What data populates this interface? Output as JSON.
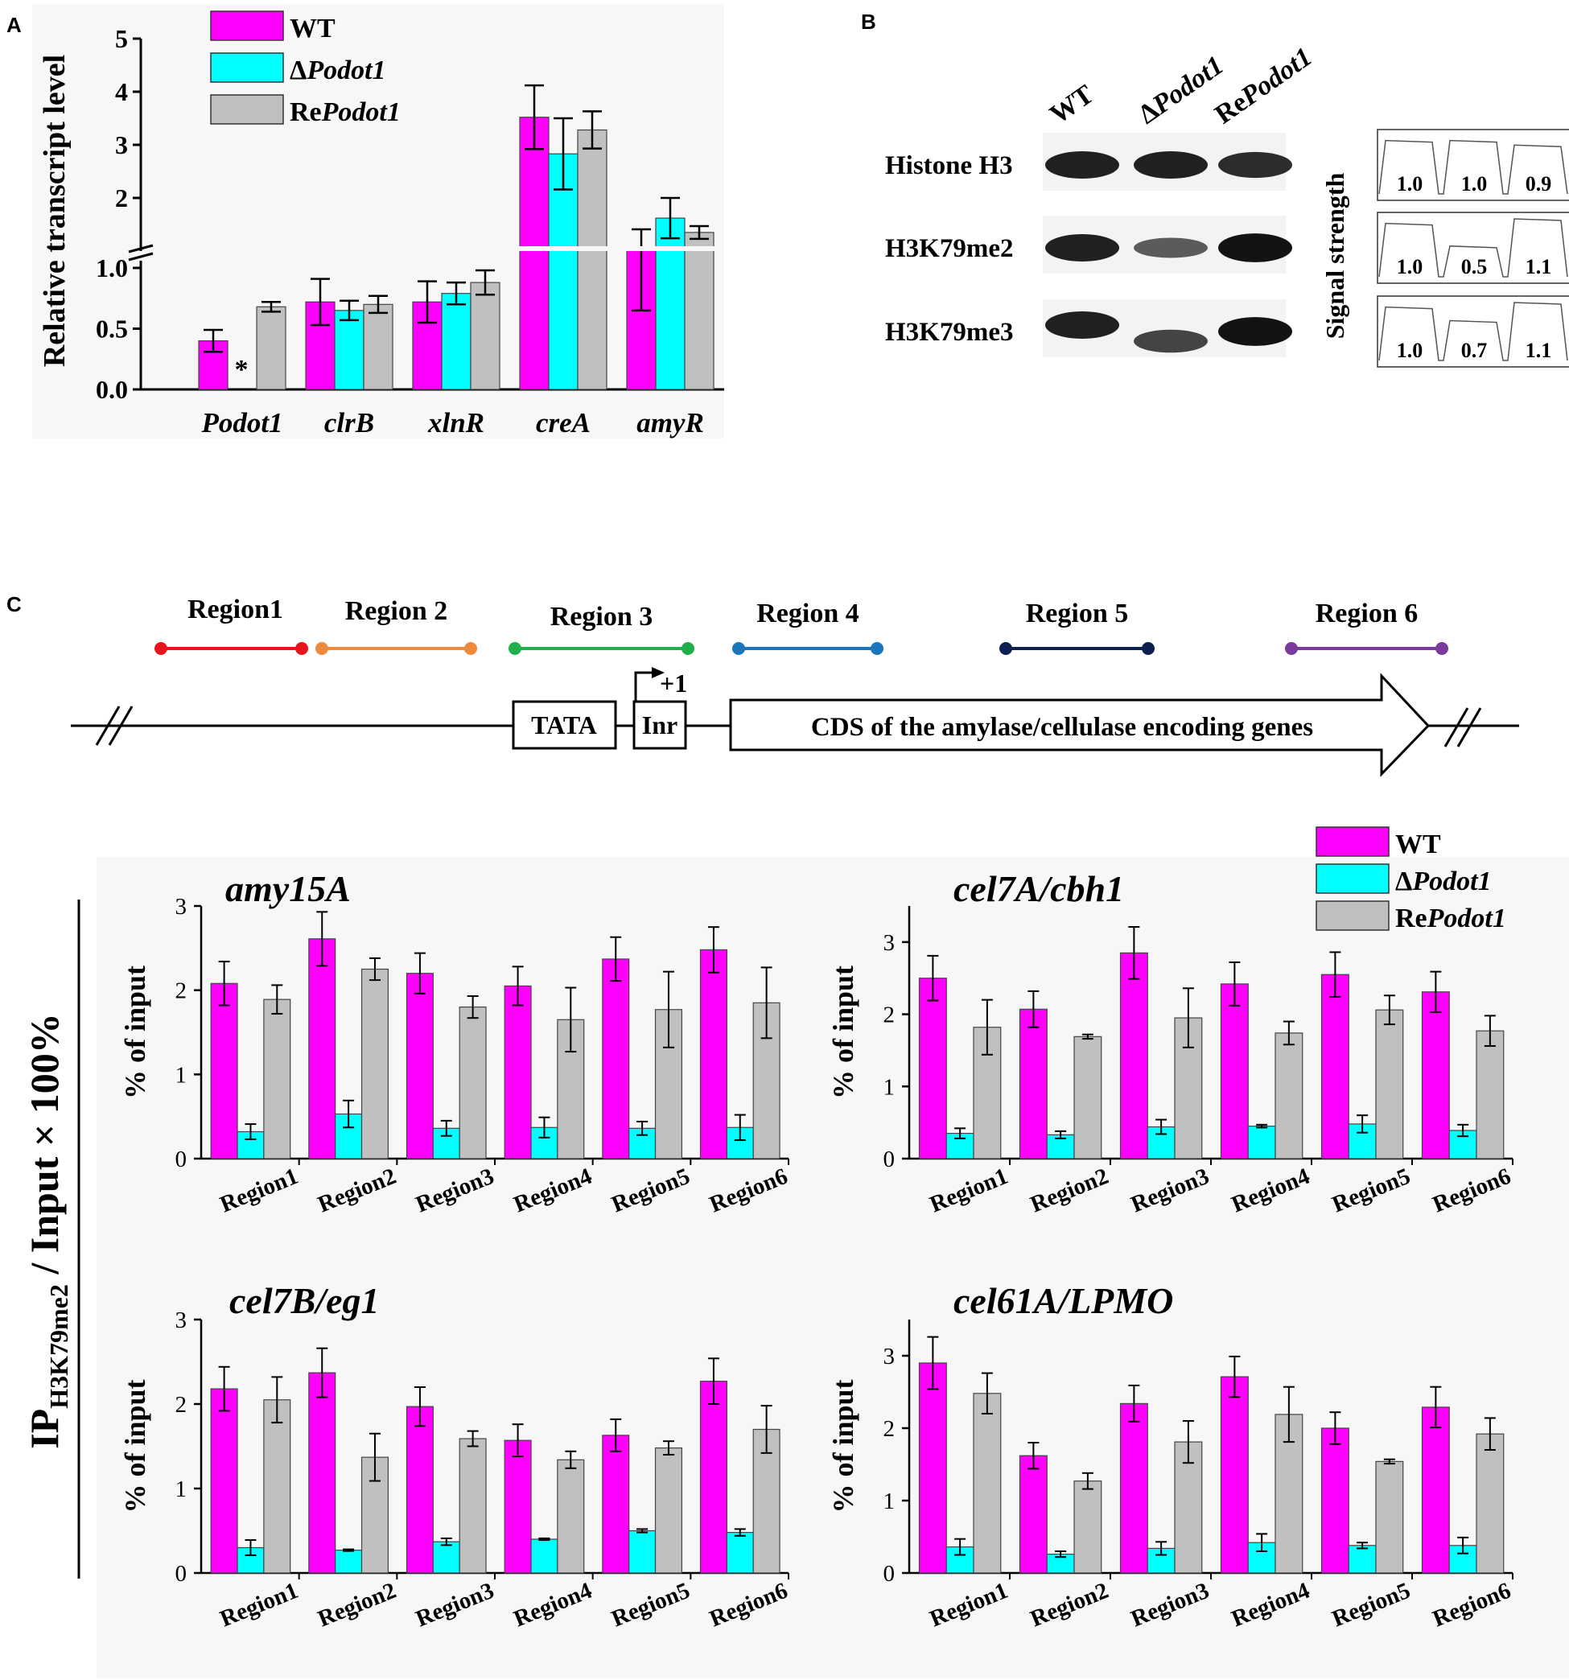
{
  "panels": {
    "a": {
      "letter": "A"
    },
    "b": {
      "letter": "B"
    },
    "c": {
      "letter": "C"
    }
  },
  "colors": {
    "wt": "#ff00ff",
    "mut": "#00ffff",
    "re": "#c0c0c0"
  },
  "legend": {
    "items": [
      {
        "key": "wt",
        "pre": "WT",
        "it": ""
      },
      {
        "key": "mut",
        "pre": "Δ",
        "it": "Podot1"
      },
      {
        "key": "re",
        "pre": "Re",
        "it": "Podot1"
      }
    ]
  },
  "chart_data": [
    {
      "id": "a",
      "type": "bar",
      "title": "",
      "ylabel": "Relative transcript level",
      "xlabel": "",
      "categories": [
        "Podot1",
        "clrB",
        "xlnR",
        "creA",
        "amyR"
      ],
      "axis_break": {
        "lower": [
          0,
          1.0
        ],
        "upper": [
          1.0,
          5
        ]
      },
      "yticks_lower": [
        "0.0",
        "0.5",
        "1.0"
      ],
      "yticks_upper": [
        "2",
        "3",
        "4",
        "5"
      ],
      "series": [
        {
          "name": "WT",
          "values": [
            0.4,
            0.72,
            0.72,
            3.52,
            1.03
          ],
          "errors": [
            0.09,
            0.19,
            0.17,
            0.6,
            0.38
          ]
        },
        {
          "name": "ΔPodot1",
          "values": [
            0.0,
            0.65,
            0.79,
            2.83,
            1.62
          ],
          "errors": [
            0.0,
            0.08,
            0.09,
            0.67,
            0.38
          ]
        },
        {
          "name": "RePodot1",
          "values": [
            0.68,
            0.7,
            0.88,
            3.28,
            1.35
          ],
          "errors": [
            0.04,
            0.07,
            0.1,
            0.35,
            0.12
          ]
        }
      ],
      "annotation": "*"
    },
    {
      "id": "amy15A",
      "type": "bar",
      "title": "amy15A",
      "ylabel": "% of input",
      "ylim": [
        0,
        3
      ],
      "yticks": [
        "0",
        "1",
        "2",
        "3"
      ],
      "categories": [
        "Region1",
        "Region2",
        "Region3",
        "Region4",
        "Region5",
        "Region6"
      ],
      "series": [
        {
          "name": "WT",
          "values": [
            2.08,
            2.61,
            2.2,
            2.05,
            2.37,
            2.48
          ],
          "errors": [
            0.26,
            0.32,
            0.24,
            0.23,
            0.26,
            0.27
          ]
        },
        {
          "name": "ΔPodot1",
          "values": [
            0.32,
            0.53,
            0.36,
            0.37,
            0.36,
            0.37
          ],
          "errors": [
            0.09,
            0.16,
            0.09,
            0.12,
            0.08,
            0.15
          ]
        },
        {
          "name": "RePodot1",
          "values": [
            1.89,
            2.25,
            1.8,
            1.65,
            1.77,
            1.85
          ],
          "errors": [
            0.17,
            0.13,
            0.13,
            0.38,
            0.45,
            0.42
          ]
        }
      ]
    },
    {
      "id": "cel7A",
      "type": "bar",
      "title": "cel7A/cbh1",
      "ylabel": "% of input",
      "ylim": [
        0,
        3.5
      ],
      "yticks": [
        "0",
        "1",
        "2",
        "3"
      ],
      "categories": [
        "Region1",
        "Region2",
        "Region3",
        "Region4",
        "Region5",
        "Region6"
      ],
      "series": [
        {
          "name": "WT",
          "values": [
            2.5,
            2.07,
            2.85,
            2.42,
            2.55,
            2.31
          ],
          "errors": [
            0.31,
            0.25,
            0.36,
            0.3,
            0.31,
            0.28
          ]
        },
        {
          "name": "ΔPodot1",
          "values": [
            0.35,
            0.33,
            0.44,
            0.45,
            0.48,
            0.39
          ],
          "errors": [
            0.07,
            0.05,
            0.1,
            0.02,
            0.12,
            0.08
          ]
        },
        {
          "name": "RePodot1",
          "values": [
            1.82,
            1.69,
            1.95,
            1.74,
            2.06,
            1.77
          ],
          "errors": [
            0.38,
            0.03,
            0.41,
            0.16,
            0.2,
            0.21
          ]
        }
      ]
    },
    {
      "id": "cel7B",
      "type": "bar",
      "title": "cel7B/eg1",
      "ylabel": "% of input",
      "ylim": [
        0,
        3
      ],
      "yticks": [
        "0",
        "1",
        "2",
        "3"
      ],
      "categories": [
        "Region1",
        "Region2",
        "Region3",
        "Region4",
        "Region5",
        "Region6"
      ],
      "series": [
        {
          "name": "WT",
          "values": [
            2.18,
            2.37,
            1.97,
            1.57,
            1.63,
            2.27
          ],
          "errors": [
            0.26,
            0.29,
            0.23,
            0.19,
            0.19,
            0.27
          ]
        },
        {
          "name": "ΔPodot1",
          "values": [
            0.3,
            0.27,
            0.37,
            0.4,
            0.5,
            0.48
          ],
          "errors": [
            0.09,
            0.01,
            0.04,
            0.01,
            0.02,
            0.04
          ]
        },
        {
          "name": "RePodot1",
          "values": [
            2.05,
            1.37,
            1.59,
            1.34,
            1.48,
            1.7
          ],
          "errors": [
            0.27,
            0.28,
            0.09,
            0.1,
            0.08,
            0.28
          ]
        }
      ]
    },
    {
      "id": "cel61A",
      "type": "bar",
      "title": "cel61A/LPMO",
      "ylabel": "% of input",
      "ylim": [
        0,
        3.5
      ],
      "yticks": [
        "0",
        "1",
        "2",
        "3"
      ],
      "categories": [
        "Region1",
        "Region2",
        "Region3",
        "Region4",
        "Region5",
        "Region6"
      ],
      "series": [
        {
          "name": "WT",
          "values": [
            2.9,
            1.62,
            2.34,
            2.71,
            2.0,
            2.29
          ],
          "errors": [
            0.36,
            0.18,
            0.25,
            0.28,
            0.22,
            0.28
          ]
        },
        {
          "name": "ΔPodot1",
          "values": [
            0.36,
            0.26,
            0.34,
            0.42,
            0.38,
            0.38
          ],
          "errors": [
            0.11,
            0.04,
            0.09,
            0.12,
            0.04,
            0.11
          ]
        },
        {
          "name": "RePodot1",
          "values": [
            2.48,
            1.27,
            1.81,
            2.19,
            1.54,
            1.92
          ],
          "errors": [
            0.28,
            0.11,
            0.29,
            0.38,
            0.03,
            0.22
          ]
        }
      ]
    }
  ],
  "blot": {
    "lanes": [
      {
        "pre": "WT",
        "it": ""
      },
      {
        "pre": "Δ",
        "it": "Podot1"
      },
      {
        "pre": "Re",
        "it": "Podot1"
      }
    ],
    "rows": [
      {
        "label": "Histone H3",
        "values": [
          "1.0",
          "1.0",
          "0.9"
        ]
      },
      {
        "label": "H3K79me2",
        "values": [
          "1.0",
          "0.5",
          "1.1"
        ]
      },
      {
        "label": "H3K79me3",
        "values": [
          "1.0",
          "0.7",
          "1.1"
        ]
      }
    ],
    "side_label": "Signal strength"
  },
  "diagram": {
    "regions": [
      {
        "label": "Region1",
        "color": "#e8141c"
      },
      {
        "label": "Region 2",
        "color": "#ee8a3c"
      },
      {
        "label": "Region 3",
        "color": "#1fb04a"
      },
      {
        "label": "Region 4",
        "color": "#1b75bb"
      },
      {
        "label": "Region 5",
        "color": "#0d1f4f"
      },
      {
        "label": "Region 6",
        "color": "#7a3b9c"
      }
    ],
    "tata": "TATA",
    "inr": "Inr",
    "tss": "+1",
    "cds": "CDS of the amylase/cellulase encoding genes"
  },
  "shared_ylabel": {
    "main": "IP",
    "sub": "H3K79me2",
    "rest": " / Input × 100%"
  }
}
